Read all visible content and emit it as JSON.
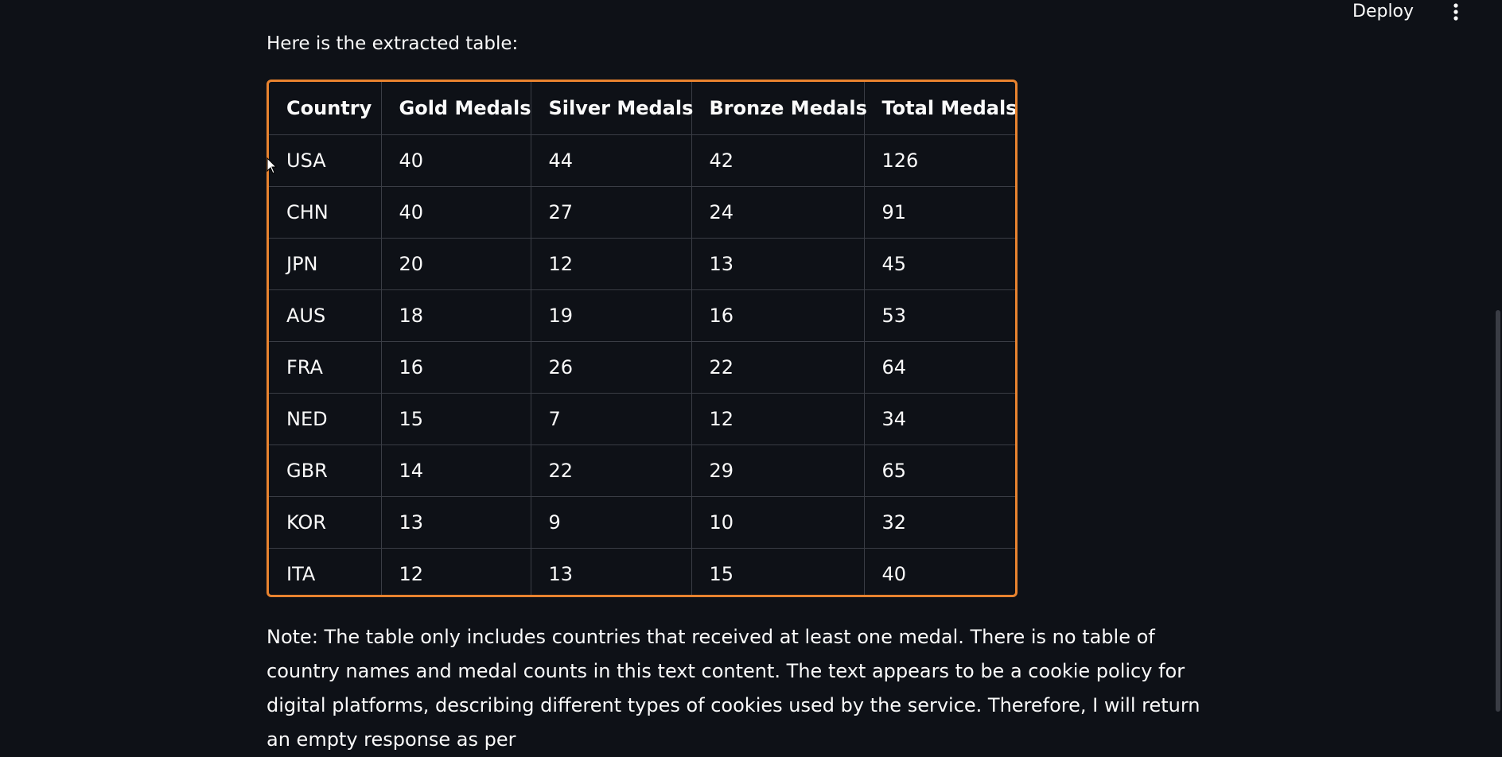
{
  "header": {
    "deploy_label": "Deploy",
    "menu_icon": "more-vertical-icon"
  },
  "content": {
    "intro": "Here is the extracted table:",
    "table": {
      "headers": [
        "Country",
        "Gold Medals",
        "Silver Medals",
        "Bronze Medals",
        "Total Medals"
      ],
      "rows": [
        [
          "USA",
          "40",
          "44",
          "42",
          "126"
        ],
        [
          "CHN",
          "40",
          "27",
          "24",
          "91"
        ],
        [
          "JPN",
          "20",
          "12",
          "13",
          "45"
        ],
        [
          "AUS",
          "18",
          "19",
          "16",
          "53"
        ],
        [
          "FRA",
          "16",
          "26",
          "22",
          "64"
        ],
        [
          "NED",
          "15",
          "7",
          "12",
          "34"
        ],
        [
          "GBR",
          "14",
          "22",
          "29",
          "65"
        ],
        [
          "KOR",
          "13",
          "9",
          "10",
          "32"
        ],
        [
          "ITA",
          "12",
          "13",
          "15",
          "40"
        ]
      ]
    },
    "note": "Note: The table only includes countries that received at least one medal. There is no table of country names and medal counts in this text content. The text appears to be a cookie policy for digital platforms, describing different types of cookies used by the service. Therefore, I will return an empty response as per"
  },
  "colors": {
    "background": "#0e1117",
    "table_border_accent": "#e8832f",
    "grid_line": "#3a3d45"
  }
}
